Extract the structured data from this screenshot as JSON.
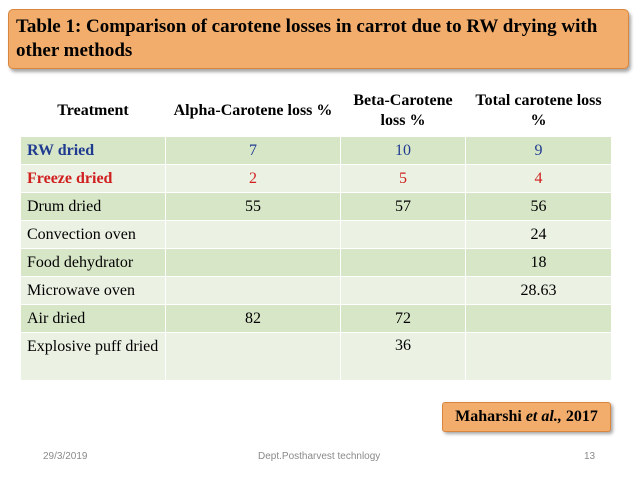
{
  "title": "Table 1: Comparison of carotene losses in carrot due to RW drying with other methods",
  "table": {
    "headers": [
      "Treatment",
      "Alpha-Carotene loss %",
      "Beta-Carotene loss %",
      "Total carotene loss %"
    ],
    "rows": [
      {
        "treatment": "RW dried",
        "alpha": "7",
        "beta": "10",
        "total": "9"
      },
      {
        "treatment": "Freeze dried",
        "alpha": "2",
        "beta": "5",
        "total": "4"
      },
      {
        "treatment": "Drum dried",
        "alpha": "55",
        "beta": "57",
        "total": "56"
      },
      {
        "treatment": "Convection oven",
        "alpha": "",
        "beta": "",
        "total": "24"
      },
      {
        "treatment": "Food dehydrator",
        "alpha": "",
        "beta": "",
        "total": "18"
      },
      {
        "treatment": "Microwave oven",
        "alpha": "",
        "beta": "",
        "total": "28.63"
      },
      {
        "treatment": "Air dried",
        "alpha": "82",
        "beta": "72",
        "total": ""
      },
      {
        "treatment": "Explosive puff dried",
        "alpha": "",
        "beta": "36",
        "total": ""
      }
    ]
  },
  "citation": {
    "author": "Maharshi",
    "etal": "et al.,",
    "year": "2017"
  },
  "footer": {
    "date": "29/3/2019",
    "department": "Dept.Postharvest technlogy",
    "page": "13"
  },
  "colors": {
    "title_bg": "#f2ad6c",
    "row_dark": "#d8e6c8",
    "row_light": "#ebf2e4",
    "rw_text": "#1f3b8f",
    "freeze_text": "#d01f1f"
  }
}
